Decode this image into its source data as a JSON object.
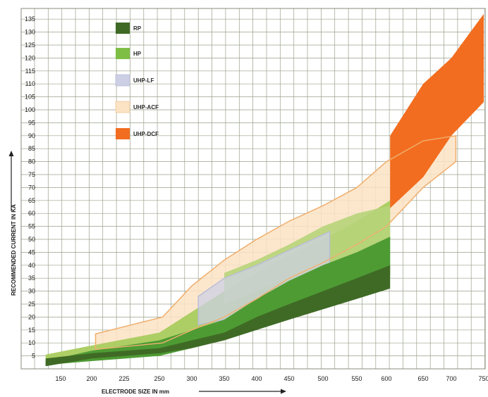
{
  "chart_data": {
    "type": "area",
    "xlabel": "ELECTRODE SIZE IN mm",
    "ylabel": "RECOMMENDED CURRENT IN KA",
    "xlim": [
      125,
      755
    ],
    "ylim": [
      0,
      137
    ],
    "x_ticks": [
      150,
      200,
      225,
      250,
      300,
      350,
      400,
      450,
      500,
      550,
      600,
      650,
      700,
      750
    ],
    "y_ticks": [
      5,
      10,
      15,
      20,
      25,
      30,
      35,
      40,
      45,
      50,
      55,
      60,
      65,
      70,
      75,
      80,
      85,
      90,
      95,
      100,
      105,
      110,
      115,
      120,
      125,
      130,
      135
    ],
    "grid": true,
    "legend_position": "top-left",
    "series": [
      {
        "name": "UHP-ACF",
        "color": "#fbe3c4",
        "edge_color": "#f0b070",
        "upper": [
          [
            203,
            13.5
          ],
          [
            255,
            20
          ],
          [
            300,
            32
          ],
          [
            350,
            42
          ],
          [
            400,
            50
          ],
          [
            450,
            57
          ],
          [
            500,
            63
          ],
          [
            550,
            70
          ],
          [
            600,
            80
          ],
          [
            650,
            88
          ],
          [
            707,
            90
          ]
        ],
        "lower": [
          [
            707,
            80
          ],
          [
            650,
            70
          ],
          [
            600,
            55
          ],
          [
            550,
            48
          ],
          [
            500,
            41
          ],
          [
            450,
            35
          ],
          [
            400,
            27
          ],
          [
            350,
            20
          ],
          [
            300,
            15
          ],
          [
            255,
            10
          ],
          [
            203,
            7.5
          ]
        ]
      },
      {
        "name": "UHP-LF",
        "color": "#cdd0e4",
        "edge_color": "#b8bcd8",
        "upper": [
          [
            310,
            28
          ],
          [
            350,
            35
          ],
          [
            400,
            40
          ],
          [
            460,
            47
          ],
          [
            510,
            53
          ]
        ],
        "lower": [
          [
            510,
            40
          ],
          [
            460,
            33
          ],
          [
            400,
            25
          ],
          [
            350,
            19
          ],
          [
            310,
            17
          ]
        ]
      },
      {
        "name": "HP",
        "color": "#a9cc5e",
        "edge_color": "#8fb540",
        "upper": [
          [
            130,
            5.5
          ],
          [
            200,
            9
          ],
          [
            250,
            14
          ],
          [
            300,
            22
          ],
          [
            350,
            30
          ],
          [
            400,
            37
          ],
          [
            450,
            44
          ],
          [
            500,
            50
          ],
          [
            550,
            57
          ],
          [
            605,
            65
          ]
        ],
        "lower": [
          [
            605,
            40
          ],
          [
            550,
            35
          ],
          [
            500,
            30
          ],
          [
            450,
            25
          ],
          [
            400,
            20
          ],
          [
            350,
            13
          ],
          [
            300,
            9
          ],
          [
            250,
            6
          ],
          [
            200,
            4
          ],
          [
            130,
            2
          ]
        ]
      },
      {
        "name": "RP",
        "color": "#3f6a25",
        "edge_color": "#2f531a",
        "upper": [
          [
            130,
            4
          ],
          [
            200,
            6
          ],
          [
            250,
            8
          ],
          [
            300,
            11
          ],
          [
            350,
            14
          ],
          [
            400,
            20
          ],
          [
            450,
            25
          ],
          [
            500,
            30
          ],
          [
            550,
            35
          ],
          [
            605,
            40
          ]
        ],
        "lower": [
          [
            605,
            31
          ],
          [
            550,
            27
          ],
          [
            500,
            23
          ],
          [
            450,
            19
          ],
          [
            400,
            15
          ],
          [
            350,
            11
          ],
          [
            300,
            8
          ],
          [
            250,
            6
          ],
          [
            200,
            4
          ],
          [
            130,
            1
          ]
        ]
      },
      {
        "name": "UHP-DCF",
        "color": "#f26d1f",
        "edge_color": "#e85f12",
        "upper": [
          [
            605,
            90
          ],
          [
            650,
            110
          ],
          [
            700,
            120
          ],
          [
            750,
            137
          ]
        ],
        "lower": [
          [
            750,
            103
          ],
          [
            700,
            90
          ],
          [
            650,
            74
          ],
          [
            605,
            62
          ]
        ]
      }
    ],
    "overlays": [
      {
        "name": "HP-upper-band",
        "color": "#b7d47a",
        "upper": [
          [
            350,
            37
          ],
          [
            400,
            42
          ],
          [
            450,
            48
          ],
          [
            500,
            55
          ],
          [
            550,
            60
          ],
          [
            605,
            63
          ]
        ],
        "lower": [
          [
            605,
            50
          ],
          [
            550,
            45
          ],
          [
            500,
            40
          ],
          [
            450,
            35
          ],
          [
            400,
            30
          ],
          [
            350,
            25
          ]
        ]
      },
      {
        "name": "HP-core",
        "color": "#4e9b34",
        "upper": [
          [
            130,
            3
          ],
          [
            200,
            7
          ],
          [
            250,
            11
          ],
          [
            300,
            15
          ],
          [
            350,
            19
          ],
          [
            400,
            27
          ],
          [
            450,
            34
          ],
          [
            500,
            40
          ],
          [
            550,
            45
          ],
          [
            605,
            51
          ]
        ],
        "lower": [
          [
            605,
            36
          ],
          [
            550,
            31
          ],
          [
            500,
            26
          ],
          [
            450,
            21
          ],
          [
            400,
            16
          ],
          [
            350,
            12
          ],
          [
            300,
            8
          ],
          [
            250,
            5
          ],
          [
            200,
            3
          ],
          [
            130,
            1.5
          ]
        ]
      }
    ],
    "legend": [
      {
        "label": "RP",
        "color": "#3f6a25"
      },
      {
        "label": "HP",
        "color": "#8bc34a"
      },
      {
        "label": "UHP-LF",
        "color": "#cdd0e4"
      },
      {
        "label": "UHP-ACF",
        "color": "#fbe3c4"
      },
      {
        "label": "UHP-DCF",
        "color": "#f26d1f"
      }
    ]
  }
}
